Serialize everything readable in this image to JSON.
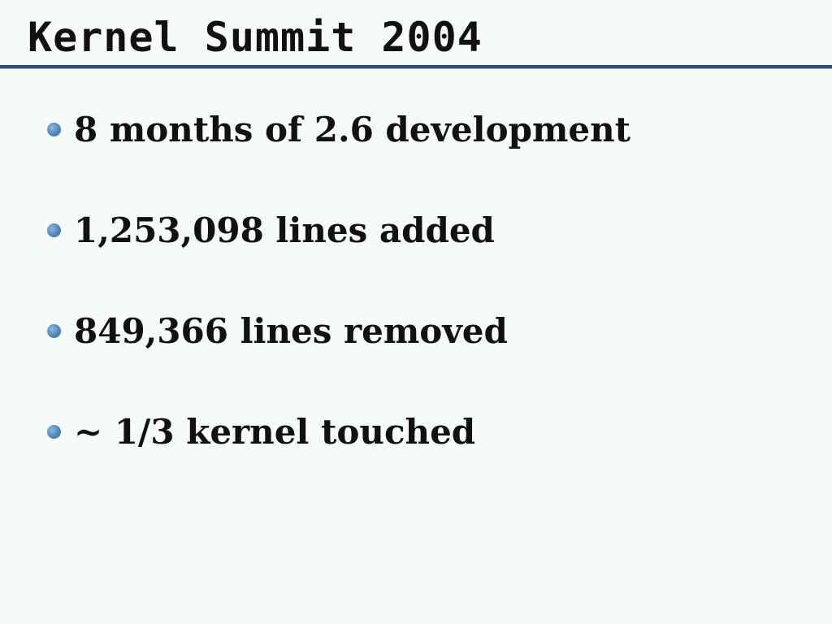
{
  "slide": {
    "title": "Kernel Summit 2004",
    "bullets": [
      "8 months of 2.6 development",
      "1,253,098 lines added",
      "849,366 lines removed",
      "~ 1/3 kernel touched"
    ]
  },
  "colors": {
    "background": "#f6faf8",
    "rule": "#2e5078",
    "bullet": "#4f86bd",
    "text": "#111111"
  }
}
